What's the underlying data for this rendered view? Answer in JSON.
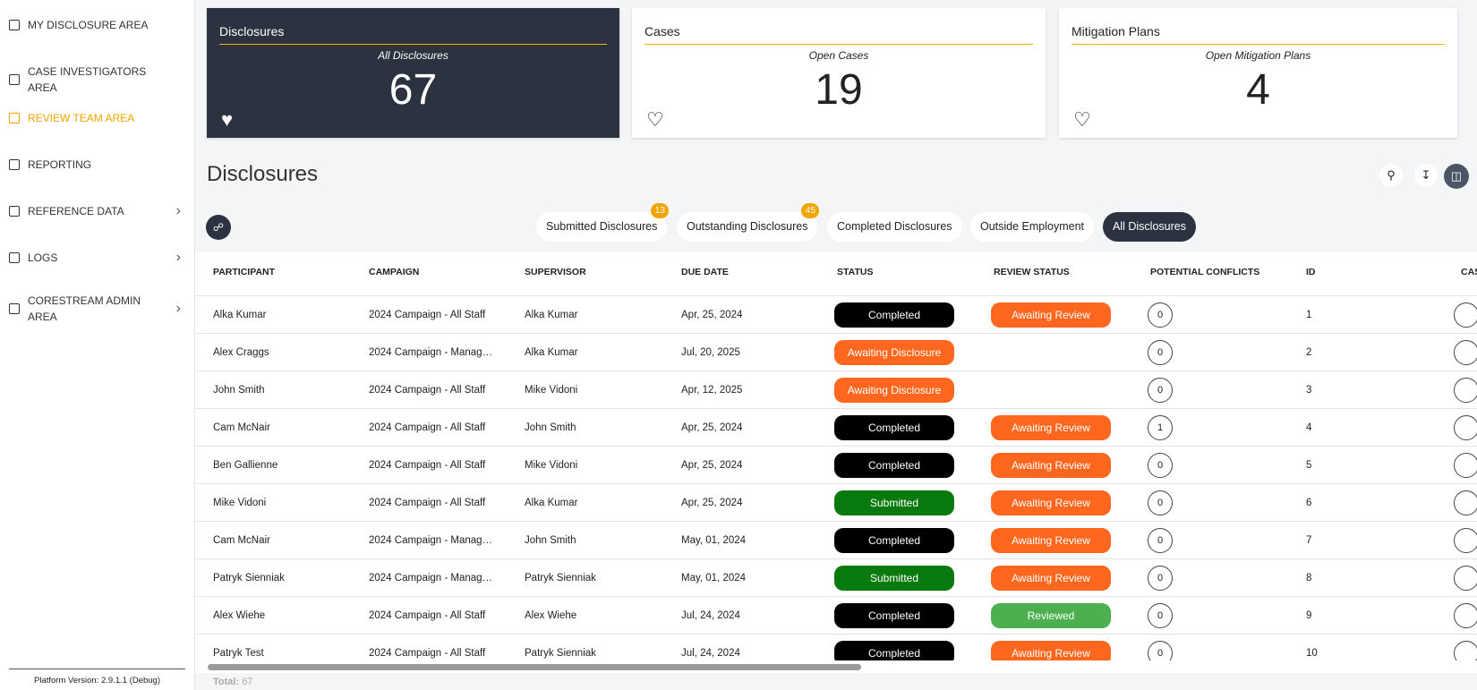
{
  "sidebar": {
    "items": [
      {
        "label": "MY DISCLOSURE AREA"
      },
      {
        "label": "CASE INVESTIGATORS AREA"
      },
      {
        "label": "REVIEW TEAM AREA",
        "active": true
      },
      {
        "label": "REPORTING"
      },
      {
        "label": "REFERENCE DATA",
        "expandable": true
      },
      {
        "label": "LOGS",
        "expandable": true
      },
      {
        "label": "CORESTREAM ADMIN AREA",
        "expandable": true
      }
    ],
    "version": "Platform Version: 2.9.1.1 (Debug)"
  },
  "cards": [
    {
      "title": "Disclosures",
      "subtitle": "All Disclosures",
      "value": 67,
      "dark": true
    },
    {
      "title": "Cases",
      "subtitle": "Open Cases",
      "value": 19
    },
    {
      "title": "Mitigation Plans",
      "subtitle": "Open Mitigation Plans",
      "value": 4
    }
  ],
  "section_title": "Disclosures",
  "tabs": [
    {
      "label": "Submitted Disclosures",
      "badge": 13
    },
    {
      "label": "Outstanding Disclosures",
      "badge": 45
    },
    {
      "label": "Completed Disclosures"
    },
    {
      "label": "Outside Employment"
    },
    {
      "label": "All Disclosures",
      "active": true
    }
  ],
  "table": {
    "columns": [
      "PARTICIPANT",
      "CAMPAIGN",
      "SUPERVISOR",
      "DUE DATE",
      "STATUS",
      "REVIEW STATUS",
      "POTENTIAL CONFLICTS",
      "ID",
      "CAS"
    ],
    "rows": [
      {
        "participant": "Alka Kumar",
        "campaign": "2024 Campaign - All Staff",
        "supervisor": "Alka Kumar",
        "due_date": "Apr, 25, 2024",
        "status": {
          "label": "Completed",
          "color": "#000000"
        },
        "review_status": {
          "label": "Awaiting Review",
          "color": "#ff671f"
        },
        "conflicts": 0,
        "id": 1
      },
      {
        "participant": "Alex Craggs",
        "campaign": "2024 Campaign - Manag…",
        "supervisor": "Alka Kumar",
        "due_date": "Jul, 20, 2025",
        "status": {
          "label": "Awaiting Disclosure",
          "color": "#ff671f"
        },
        "review_status": null,
        "conflicts": 0,
        "id": 2
      },
      {
        "participant": "John Smith",
        "campaign": "2024 Campaign - All Staff",
        "supervisor": "Mike Vidoni",
        "due_date": "Apr, 12, 2025",
        "status": {
          "label": "Awaiting Disclosure",
          "color": "#ff671f"
        },
        "review_status": null,
        "conflicts": 0,
        "id": 3
      },
      {
        "participant": "Cam McNair",
        "campaign": "2024 Campaign - All Staff",
        "supervisor": "John Smith",
        "due_date": "Apr, 25, 2024",
        "status": {
          "label": "Completed",
          "color": "#000000"
        },
        "review_status": {
          "label": "Awaiting Review",
          "color": "#ff671f"
        },
        "conflicts": 1,
        "id": 4
      },
      {
        "participant": "Ben Gallienne",
        "campaign": "2024 Campaign - All Staff",
        "supervisor": "Mike Vidoni",
        "due_date": "Apr, 25, 2024",
        "status": {
          "label": "Completed",
          "color": "#000000"
        },
        "review_status": {
          "label": "Awaiting Review",
          "color": "#ff671f"
        },
        "conflicts": 0,
        "id": 5
      },
      {
        "participant": "Mike Vidoni",
        "campaign": "2024 Campaign - All Staff",
        "supervisor": "Alka Kumar",
        "due_date": "Apr, 25, 2024",
        "status": {
          "label": "Submitted",
          "color": "#087a0e"
        },
        "review_status": {
          "label": "Awaiting Review",
          "color": "#ff671f"
        },
        "conflicts": 0,
        "id": 6
      },
      {
        "participant": "Cam McNair",
        "campaign": "2024 Campaign - Manag…",
        "supervisor": "John Smith",
        "due_date": "May, 01, 2024",
        "status": {
          "label": "Completed",
          "color": "#000000"
        },
        "review_status": {
          "label": "Awaiting Review",
          "color": "#ff671f"
        },
        "conflicts": 0,
        "id": 7
      },
      {
        "participant": "Patryk Sienniak",
        "campaign": "2024 Campaign - Manag…",
        "supervisor": "Patryk Sienniak",
        "due_date": "May, 01, 2024",
        "status": {
          "label": "Submitted",
          "color": "#087a0e"
        },
        "review_status": {
          "label": "Awaiting Review",
          "color": "#ff671f"
        },
        "conflicts": 0,
        "id": 8
      },
      {
        "participant": "Alex Wiehe",
        "campaign": "2024 Campaign - All Staff",
        "supervisor": "Alex Wiehe",
        "due_date": "Jul, 24, 2024",
        "status": {
          "label": "Completed",
          "color": "#000000"
        },
        "review_status": {
          "label": "Reviewed",
          "color": "#4caf50"
        },
        "conflicts": 0,
        "id": 9
      },
      {
        "participant": "Patryk Test",
        "campaign": "2024 Campaign - All Staff",
        "supervisor": "Patryk Sienniak",
        "due_date": "Jul, 24, 2024",
        "status": {
          "label": "Completed",
          "color": "#000000"
        },
        "review_status": {
          "label": "Awaiting Review",
          "color": "#ff671f"
        },
        "conflicts": 0,
        "id": 10
      }
    ]
  },
  "footer": {
    "total_label": "Total:",
    "total": 67
  }
}
